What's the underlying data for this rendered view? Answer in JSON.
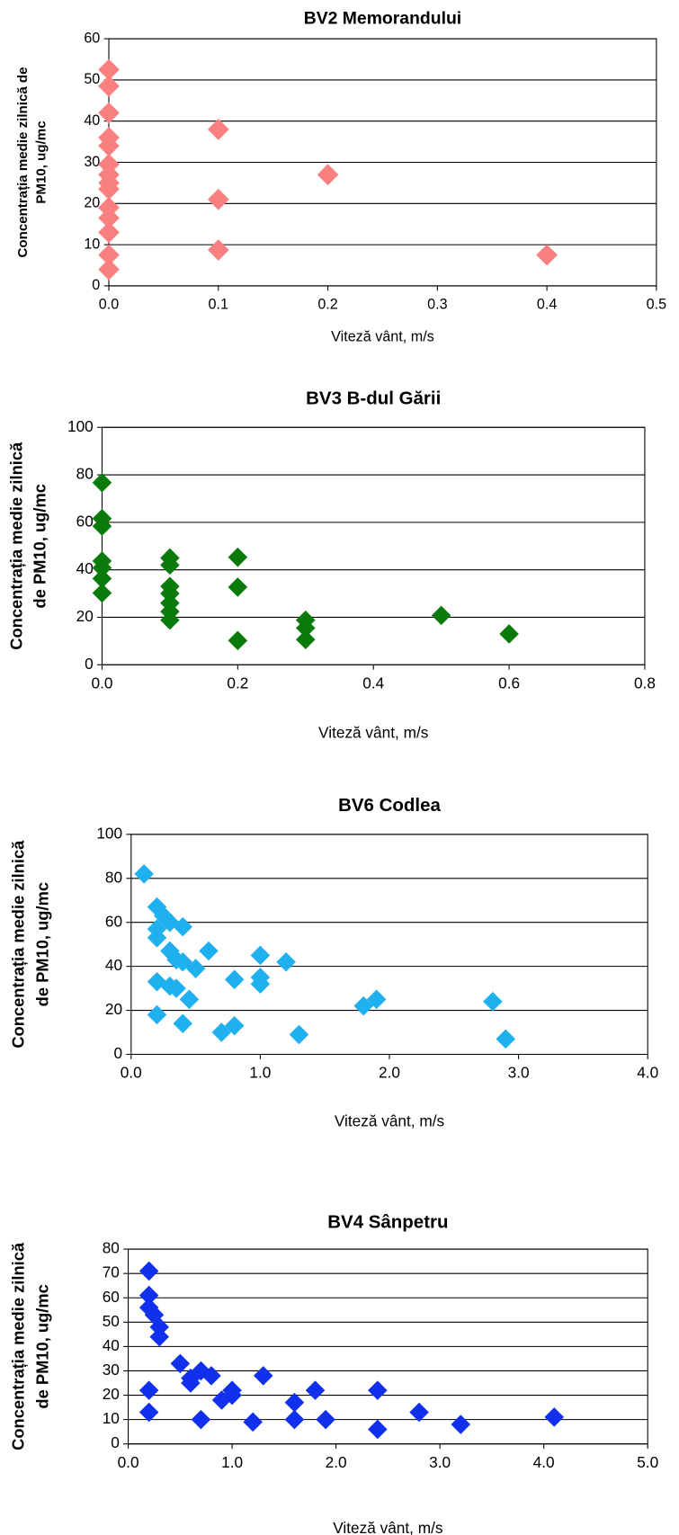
{
  "chart_data": [
    {
      "type": "scatter",
      "title": "BV2 Memorandului",
      "xlabel": "Viteză vânt, m/s",
      "ylabel": [
        "Concentrația medie zilnică de",
        "PM10, ug/mc"
      ],
      "color": "#fa8080",
      "x": [
        0,
        0,
        0,
        0,
        0,
        0,
        0,
        0,
        0,
        0,
        0,
        0,
        0,
        0,
        0.1,
        0.1,
        0.1,
        0.2,
        0.4
      ],
      "values": [
        52.5,
        48.5,
        42,
        36,
        34,
        29.5,
        27,
        23.5,
        19,
        16.5,
        13,
        7.5,
        4,
        25,
        38,
        21,
        8.7,
        27,
        7.5
      ],
      "xlim": [
        0,
        0.5
      ],
      "ylim": [
        0,
        60
      ],
      "xticks": [
        {
          "value": 0,
          "label": "0.0"
        },
        0.1,
        0.2,
        0.3,
        0.4,
        0.5
      ],
      "yticks": [
        0,
        10,
        20,
        30,
        40,
        50,
        60
      ],
      "grid": true
    },
    {
      "type": "scatter",
      "title": "BV3 B-dul Gării",
      "xlabel": "Viteză vânt,  m/s",
      "ylabel": [
        "Concentrația medie zilnică",
        "de PM10, ug/mc"
      ],
      "color": "#0a7a0a",
      "x": [
        0,
        0,
        0,
        0,
        0,
        0,
        0,
        0.1,
        0.1,
        0.1,
        0.1,
        0.1,
        0.1,
        0.1,
        0.2,
        0.2,
        0.2,
        0.3,
        0.3,
        0.3,
        0.5,
        0.6
      ],
      "values": [
        76.7,
        61.6,
        58.4,
        43.7,
        40.8,
        36.3,
        30.2,
        45,
        42,
        33,
        30,
        26,
        22.4,
        18.8,
        45.3,
        32.7,
        10.2,
        18.8,
        15.5,
        10.6,
        20.8,
        13
      ],
      "xlim": [
        0,
        0.8
      ],
      "ylim": [
        0,
        100
      ],
      "xticks": [
        {
          "value": 0,
          "label": "0.0"
        },
        0.2,
        0.4,
        0.6,
        0.8
      ],
      "yticks": [
        0,
        20,
        40,
        60,
        80,
        100
      ],
      "grid": true
    },
    {
      "type": "scatter",
      "title": "BV6 Codlea",
      "xlabel": "Viteză vânt,  m/s",
      "ylabel": [
        "Concentrația medie zilnică",
        "de PM10, ug/mc"
      ],
      "color": "#1fb0f0",
      "x": [
        0.1,
        0.2,
        0.25,
        0.3,
        0.2,
        0.2,
        0.4,
        0.6,
        0.3,
        0.35,
        0.4,
        0.5,
        0.2,
        0.3,
        0.35,
        0.45,
        0.2,
        0.4,
        0.7,
        0.8,
        0.8,
        1.0,
        1.0,
        1.0,
        1.2,
        1.3,
        1.8,
        1.9,
        2.8,
        2.9
      ],
      "values": [
        82,
        67,
        63,
        60,
        57,
        53,
        58,
        47,
        47,
        43,
        42,
        39,
        33,
        31,
        30,
        25,
        18,
        14,
        10,
        13,
        34,
        45,
        35,
        32,
        42,
        9,
        22,
        25,
        24,
        7
      ],
      "xlim": [
        0,
        4
      ],
      "ylim": [
        0,
        100
      ],
      "xticks": [
        {
          "value": 0,
          "label": "0.0"
        },
        {
          "value": 1,
          "label": "1.0"
        },
        {
          "value": 2,
          "label": "2.0"
        },
        {
          "value": 3,
          "label": "3.0"
        },
        {
          "value": 4,
          "label": "4.0"
        }
      ],
      "yticks": [
        0,
        20,
        40,
        60,
        80,
        100
      ],
      "grid": true
    },
    {
      "type": "scatter",
      "title": "BV4 Sânpetru",
      "xlabel": "Viteză vânt, m/s",
      "ylabel": [
        "Concentrația medie zilnică",
        "de PM10, ug/mc"
      ],
      "color": "#1030ee",
      "x": [
        0.2,
        0.2,
        0.2,
        0.25,
        0.3,
        0.3,
        0.2,
        0.2,
        0.5,
        0.6,
        0.6,
        0.7,
        0.8,
        0.7,
        0.9,
        1.0,
        1.0,
        1.2,
        1.3,
        1.6,
        1.6,
        1.8,
        1.9,
        2.4,
        2.4,
        2.8,
        3.2,
        4.1
      ],
      "values": [
        71,
        61,
        56,
        53,
        48,
        44,
        22,
        13,
        33,
        27,
        25,
        30,
        28,
        10,
        18,
        20,
        22,
        9,
        28,
        17,
        10,
        22,
        10,
        22,
        6,
        13,
        8,
        11
      ],
      "xlim": [
        0,
        5
      ],
      "ylim": [
        0,
        80
      ],
      "xticks": [
        {
          "value": 0,
          "label": "0.0"
        },
        {
          "value": 1,
          "label": "1.0"
        },
        {
          "value": 2,
          "label": "2.0"
        },
        {
          "value": 3,
          "label": "3.0"
        },
        {
          "value": 4,
          "label": "4.0"
        },
        {
          "value": 5,
          "label": "5.0"
        }
      ],
      "yticks": [
        0,
        10,
        20,
        30,
        40,
        50,
        60,
        70,
        80
      ],
      "grid": true
    }
  ]
}
